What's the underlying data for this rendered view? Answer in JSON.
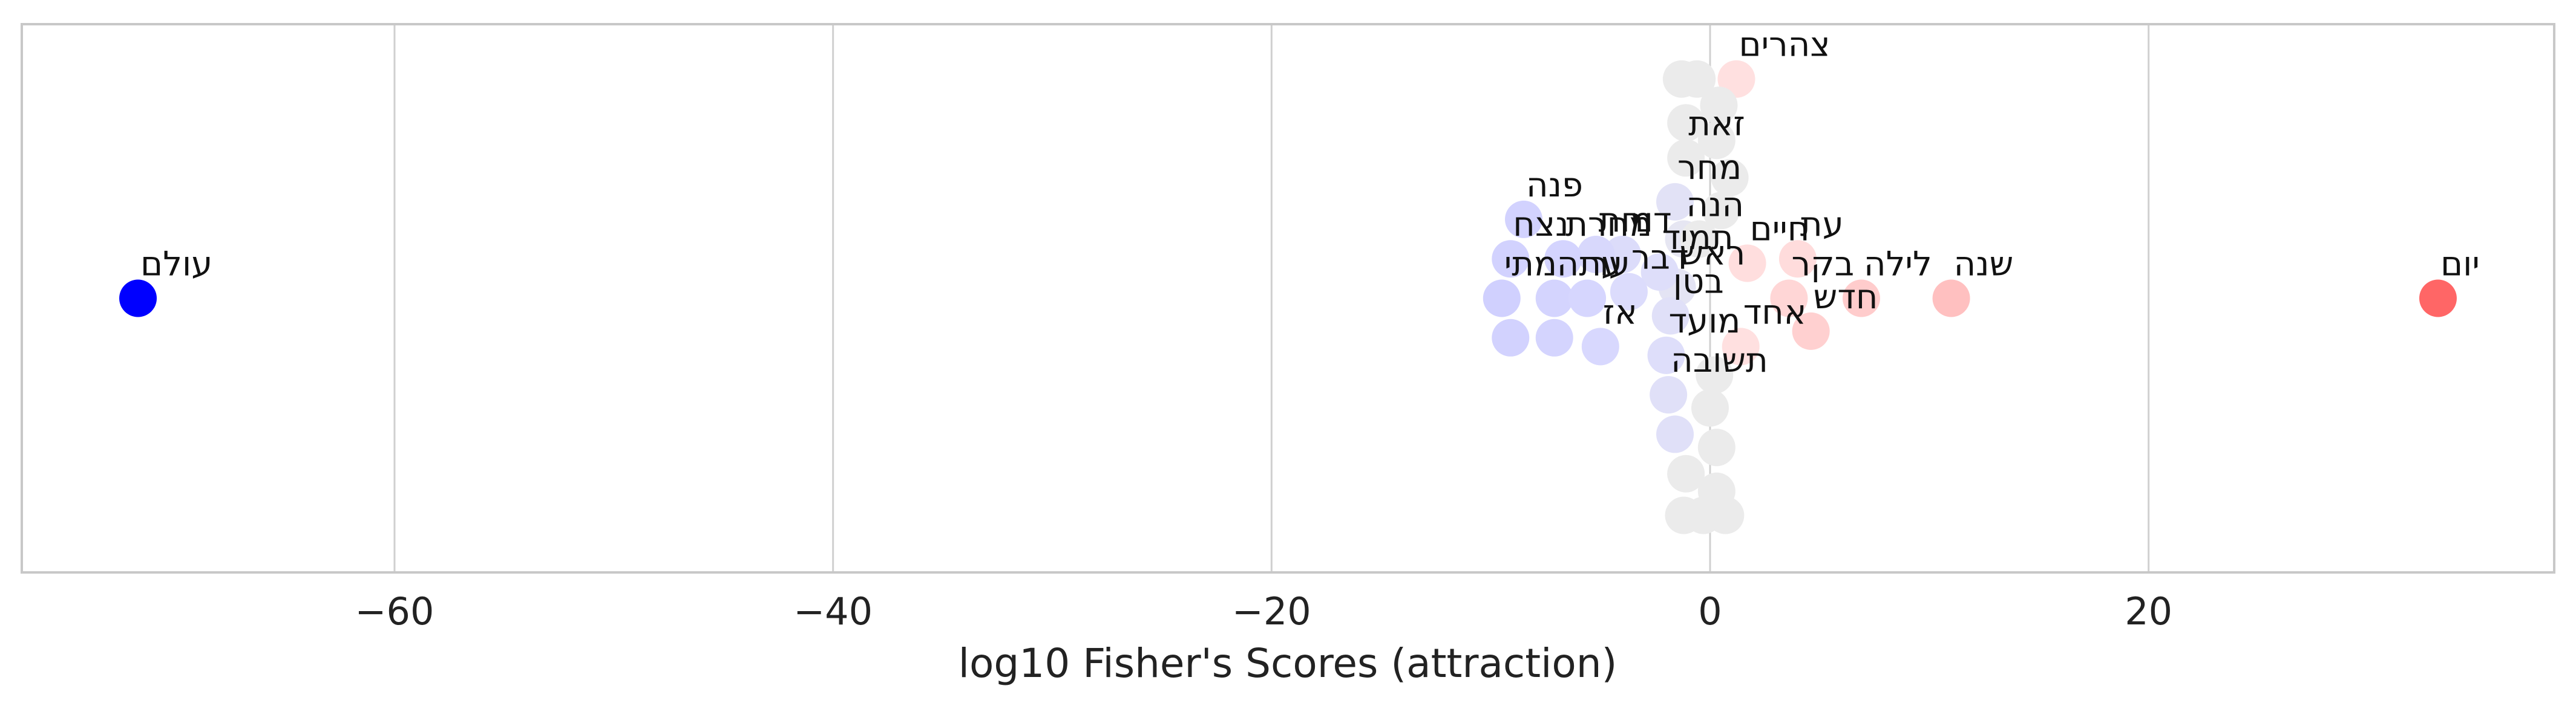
{
  "chart_data": {
    "type": "scatter",
    "title": "",
    "xlabel": "log10 Fisher's Scores (attraction)",
    "ylabel": "",
    "xlim": [
      -77,
      38.5
    ],
    "ylim": [
      -1.25,
      1.25
    ],
    "xticks": [
      -60,
      -40,
      -20,
      0,
      20
    ],
    "grid": "vertical",
    "legend": "none",
    "color_scale": {
      "negative_strong": "#0000ff",
      "negative_light": "#d9d9ff",
      "neutral": "#ebebeb",
      "positive_light": "#ffd6d6",
      "positive_strong": "#ff6666"
    },
    "points": [
      {
        "label": "עולם",
        "x": -71.7,
        "y": 0.0,
        "color": "#0000ff"
      },
      {
        "label": "יום",
        "x": 33.2,
        "y": 0.0,
        "color": "#ff6666"
      },
      {
        "label": "שנה",
        "x": 11.0,
        "y": 0.0,
        "color": "#ffc0c0"
      },
      {
        "label": "לילה",
        "x": 6.9,
        "y": 0.0,
        "color": "#ffcccc"
      },
      {
        "label": "בקר",
        "x": 3.6,
        "y": 0.0,
        "color": "#ffd6d6"
      },
      {
        "label": "חדש",
        "x": 4.6,
        "y": -0.15,
        "color": "#ffd0d0"
      },
      {
        "label": "חיים",
        "x": 1.7,
        "y": 0.16,
        "color": "#ffdede"
      },
      {
        "label": "עת",
        "x": 4.0,
        "y": 0.18,
        "color": "#ffdcdc"
      },
      {
        "label": "אחד",
        "x": 1.4,
        "y": -0.22,
        "color": "#ffe0e0"
      },
      {
        "label": "צהרים",
        "x": 1.2,
        "y": 1.0,
        "color": "#ffe0e0"
      },
      {
        "label": "זאת",
        "x": -1.1,
        "y": 0.64,
        "color": "#ebebeb"
      },
      {
        "label": "מחר",
        "x": -1.6,
        "y": 0.44,
        "color": "#e2e2f6"
      },
      {
        "label": "הנה",
        "x": -1.2,
        "y": 0.27,
        "color": "#e6e6f2"
      },
      {
        "label": "ראש",
        "x": -1.5,
        "y": 0.05,
        "color": "#e4e4f4"
      },
      {
        "label": "בטן",
        "x": -1.8,
        "y": -0.08,
        "color": "#e0e0f8"
      },
      {
        "label": "מועד",
        "x": -2.0,
        "y": -0.26,
        "color": "#dedefa"
      },
      {
        "label": "תשובה",
        "x": -1.9,
        "y": -0.44,
        "color": "#e0e0f8"
      },
      {
        "label": "תמיד",
        "x": -2.3,
        "y": 0.12,
        "color": "#dedefa"
      },
      {
        "label": "דור",
        "x": -4.0,
        "y": 0.2,
        "color": "#dcdcfa"
      },
      {
        "label": "מות",
        "x": -5.2,
        "y": 0.2,
        "color": "#d8d8fc"
      },
      {
        "label": "דבר",
        "x": -3.7,
        "y": 0.03,
        "color": "#dcdcfc"
      },
      {
        "label": "פנה",
        "x": -8.5,
        "y": 0.36,
        "color": "#d2d2fe"
      },
      {
        "label": "מחרת",
        "x": -6.7,
        "y": 0.18,
        "color": "#d4d4fe"
      },
      {
        "label": "נצח",
        "x": -9.1,
        "y": 0.18,
        "color": "#d2d2fe"
      },
      {
        "label": "עתה",
        "x": -7.1,
        "y": 0.0,
        "color": "#d4d4fe"
      },
      {
        "label": "ער",
        "x": -5.6,
        "y": 0.0,
        "color": "#d6d6fe"
      },
      {
        "label": "מתי",
        "x": -9.5,
        "y": 0.0,
        "color": "#d0d0fe"
      },
      {
        "label": "אז",
        "x": -5.0,
        "y": -0.22,
        "color": "#d8d8fe"
      },
      {
        "label": "",
        "x": -9.1,
        "y": -0.18,
        "color": "#d2d2fe"
      },
      {
        "label": "",
        "x": -7.1,
        "y": -0.18,
        "color": "#d4d4fe"
      },
      {
        "label": "",
        "x": -1.6,
        "y": -0.62,
        "color": "#e0e0f8"
      },
      {
        "label": "",
        "x": -1.3,
        "y": 1.0,
        "color": "#ebebeb"
      },
      {
        "label": "",
        "x": -0.6,
        "y": 1.0,
        "color": "#ebebeb"
      },
      {
        "label": "",
        "x": 0.4,
        "y": 0.88,
        "color": "#ebebeb"
      },
      {
        "label": "",
        "x": -1.1,
        "y": 0.8,
        "color": "#ebebeb"
      },
      {
        "label": "",
        "x": 0.3,
        "y": 0.72,
        "color": "#ebebeb"
      },
      {
        "label": "",
        "x": 0.9,
        "y": 0.55,
        "color": "#ebebeb"
      },
      {
        "label": "",
        "x": 0.5,
        "y": 0.4,
        "color": "#ebebeb"
      },
      {
        "label": "",
        "x": -0.5,
        "y": 0.27,
        "color": "#ebebeb"
      },
      {
        "label": "",
        "x": 0.2,
        "y": -0.35,
        "color": "#ebebeb"
      },
      {
        "label": "",
        "x": 0.0,
        "y": -0.5,
        "color": "#ebebeb"
      },
      {
        "label": "",
        "x": 0.3,
        "y": -0.68,
        "color": "#ebebeb"
      },
      {
        "label": "",
        "x": -1.1,
        "y": -0.8,
        "color": "#ebebeb"
      },
      {
        "label": "",
        "x": 0.3,
        "y": -0.88,
        "color": "#ebebeb"
      },
      {
        "label": "",
        "x": -1.2,
        "y": -0.99,
        "color": "#ebebeb"
      },
      {
        "label": "",
        "x": -0.3,
        "y": -0.99,
        "color": "#ebebeb"
      },
      {
        "label": "",
        "x": 0.7,
        "y": -0.99,
        "color": "#ebebeb"
      }
    ]
  }
}
